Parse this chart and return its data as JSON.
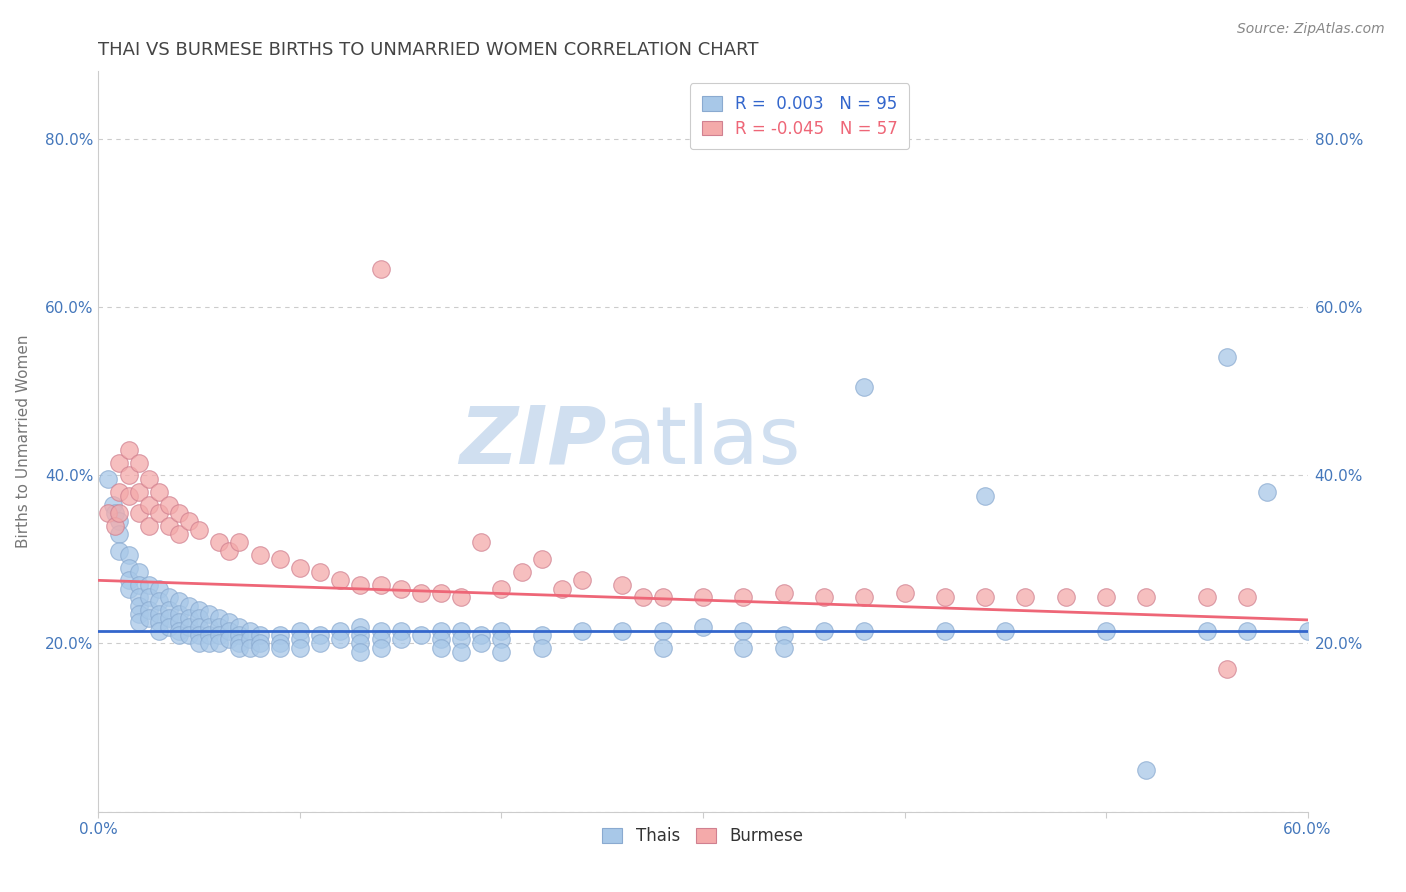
{
  "title": "THAI VS BURMESE BIRTHS TO UNMARRIED WOMEN CORRELATION CHART",
  "source_text": "Source: ZipAtlas.com",
  "ylabel": "Births to Unmarried Women",
  "xlim": [
    0.0,
    0.6
  ],
  "ylim": [
    0.0,
    0.88
  ],
  "xticks": [
    0.0,
    0.1,
    0.2,
    0.3,
    0.4,
    0.5,
    0.6
  ],
  "yticks": [
    0.0,
    0.2,
    0.4,
    0.6,
    0.8
  ],
  "xticklabels": [
    "0.0%",
    "",
    "",
    "",
    "",
    "",
    "60.0%"
  ],
  "yticklabels": [
    "",
    "20.0%",
    "40.0%",
    "60.0%",
    "80.0%"
  ],
  "right_yticklabels": [
    "20.0%",
    "40.0%",
    "60.0%",
    "80.0%"
  ],
  "thai_R": 0.003,
  "thai_N": 95,
  "burmese_R": -0.045,
  "burmese_N": 57,
  "thai_color": "#A8C8E8",
  "burmese_color": "#F4AAAA",
  "thai_line_color": "#3366CC",
  "burmese_line_color": "#EE6677",
  "watermark_color": "#D0DFF0",
  "title_color": "#444444",
  "axis_label_color": "#777777",
  "tick_color": "#4477BB",
  "grid_color": "#CCCCCC",
  "thai_line_y0": 0.215,
  "thai_line_y1": 0.215,
  "burmese_line_y0": 0.275,
  "burmese_line_y1": 0.228,
  "thai_scatter": [
    [
      0.005,
      0.395
    ],
    [
      0.007,
      0.365
    ],
    [
      0.008,
      0.355
    ],
    [
      0.01,
      0.345
    ],
    [
      0.01,
      0.33
    ],
    [
      0.01,
      0.31
    ],
    [
      0.015,
      0.305
    ],
    [
      0.015,
      0.29
    ],
    [
      0.015,
      0.275
    ],
    [
      0.015,
      0.265
    ],
    [
      0.02,
      0.285
    ],
    [
      0.02,
      0.27
    ],
    [
      0.02,
      0.255
    ],
    [
      0.02,
      0.245
    ],
    [
      0.02,
      0.235
    ],
    [
      0.02,
      0.225
    ],
    [
      0.025,
      0.27
    ],
    [
      0.025,
      0.255
    ],
    [
      0.025,
      0.24
    ],
    [
      0.025,
      0.23
    ],
    [
      0.03,
      0.265
    ],
    [
      0.03,
      0.25
    ],
    [
      0.03,
      0.235
    ],
    [
      0.03,
      0.225
    ],
    [
      0.03,
      0.215
    ],
    [
      0.035,
      0.255
    ],
    [
      0.035,
      0.24
    ],
    [
      0.035,
      0.23
    ],
    [
      0.035,
      0.22
    ],
    [
      0.04,
      0.25
    ],
    [
      0.04,
      0.235
    ],
    [
      0.04,
      0.225
    ],
    [
      0.04,
      0.215
    ],
    [
      0.04,
      0.21
    ],
    [
      0.045,
      0.245
    ],
    [
      0.045,
      0.23
    ],
    [
      0.045,
      0.22
    ],
    [
      0.045,
      0.21
    ],
    [
      0.05,
      0.24
    ],
    [
      0.05,
      0.23
    ],
    [
      0.05,
      0.22
    ],
    [
      0.05,
      0.21
    ],
    [
      0.05,
      0.2
    ],
    [
      0.055,
      0.235
    ],
    [
      0.055,
      0.22
    ],
    [
      0.055,
      0.21
    ],
    [
      0.055,
      0.2
    ],
    [
      0.06,
      0.23
    ],
    [
      0.06,
      0.22
    ],
    [
      0.06,
      0.21
    ],
    [
      0.06,
      0.2
    ],
    [
      0.065,
      0.225
    ],
    [
      0.065,
      0.215
    ],
    [
      0.065,
      0.205
    ],
    [
      0.07,
      0.22
    ],
    [
      0.07,
      0.21
    ],
    [
      0.07,
      0.2
    ],
    [
      0.07,
      0.195
    ],
    [
      0.075,
      0.215
    ],
    [
      0.075,
      0.205
    ],
    [
      0.075,
      0.195
    ],
    [
      0.08,
      0.21
    ],
    [
      0.08,
      0.2
    ],
    [
      0.08,
      0.195
    ],
    [
      0.09,
      0.21
    ],
    [
      0.09,
      0.2
    ],
    [
      0.09,
      0.195
    ],
    [
      0.1,
      0.215
    ],
    [
      0.1,
      0.205
    ],
    [
      0.1,
      0.195
    ],
    [
      0.11,
      0.21
    ],
    [
      0.11,
      0.2
    ],
    [
      0.12,
      0.215
    ],
    [
      0.12,
      0.205
    ],
    [
      0.13,
      0.22
    ],
    [
      0.13,
      0.21
    ],
    [
      0.13,
      0.2
    ],
    [
      0.13,
      0.19
    ],
    [
      0.14,
      0.215
    ],
    [
      0.14,
      0.205
    ],
    [
      0.14,
      0.195
    ],
    [
      0.15,
      0.215
    ],
    [
      0.15,
      0.205
    ],
    [
      0.16,
      0.21
    ],
    [
      0.17,
      0.215
    ],
    [
      0.17,
      0.205
    ],
    [
      0.17,
      0.195
    ],
    [
      0.18,
      0.215
    ],
    [
      0.18,
      0.205
    ],
    [
      0.18,
      0.19
    ],
    [
      0.19,
      0.21
    ],
    [
      0.19,
      0.2
    ],
    [
      0.2,
      0.215
    ],
    [
      0.2,
      0.205
    ],
    [
      0.2,
      0.19
    ],
    [
      0.22,
      0.21
    ],
    [
      0.22,
      0.195
    ],
    [
      0.24,
      0.215
    ],
    [
      0.26,
      0.215
    ],
    [
      0.28,
      0.215
    ],
    [
      0.28,
      0.195
    ],
    [
      0.3,
      0.22
    ],
    [
      0.32,
      0.215
    ],
    [
      0.32,
      0.195
    ],
    [
      0.34,
      0.21
    ],
    [
      0.34,
      0.195
    ],
    [
      0.36,
      0.215
    ],
    [
      0.38,
      0.215
    ],
    [
      0.38,
      0.505
    ],
    [
      0.42,
      0.215
    ],
    [
      0.44,
      0.375
    ],
    [
      0.45,
      0.215
    ],
    [
      0.5,
      0.215
    ],
    [
      0.52,
      0.05
    ],
    [
      0.55,
      0.215
    ],
    [
      0.56,
      0.54
    ],
    [
      0.57,
      0.215
    ],
    [
      0.58,
      0.38
    ],
    [
      0.6,
      0.215
    ]
  ],
  "burmese_scatter": [
    [
      0.005,
      0.355
    ],
    [
      0.008,
      0.34
    ],
    [
      0.01,
      0.415
    ],
    [
      0.01,
      0.38
    ],
    [
      0.01,
      0.355
    ],
    [
      0.015,
      0.43
    ],
    [
      0.015,
      0.4
    ],
    [
      0.015,
      0.375
    ],
    [
      0.02,
      0.415
    ],
    [
      0.02,
      0.38
    ],
    [
      0.02,
      0.355
    ],
    [
      0.025,
      0.395
    ],
    [
      0.025,
      0.365
    ],
    [
      0.025,
      0.34
    ],
    [
      0.03,
      0.38
    ],
    [
      0.03,
      0.355
    ],
    [
      0.035,
      0.365
    ],
    [
      0.035,
      0.34
    ],
    [
      0.04,
      0.355
    ],
    [
      0.04,
      0.33
    ],
    [
      0.045,
      0.345
    ],
    [
      0.05,
      0.335
    ],
    [
      0.06,
      0.32
    ],
    [
      0.065,
      0.31
    ],
    [
      0.07,
      0.32
    ],
    [
      0.08,
      0.305
    ],
    [
      0.09,
      0.3
    ],
    [
      0.1,
      0.29
    ],
    [
      0.11,
      0.285
    ],
    [
      0.12,
      0.275
    ],
    [
      0.13,
      0.27
    ],
    [
      0.14,
      0.27
    ],
    [
      0.14,
      0.645
    ],
    [
      0.15,
      0.265
    ],
    [
      0.16,
      0.26
    ],
    [
      0.17,
      0.26
    ],
    [
      0.18,
      0.255
    ],
    [
      0.19,
      0.32
    ],
    [
      0.2,
      0.265
    ],
    [
      0.21,
      0.285
    ],
    [
      0.22,
      0.3
    ],
    [
      0.23,
      0.265
    ],
    [
      0.24,
      0.275
    ],
    [
      0.26,
      0.27
    ],
    [
      0.27,
      0.255
    ],
    [
      0.28,
      0.255
    ],
    [
      0.3,
      0.255
    ],
    [
      0.32,
      0.255
    ],
    [
      0.34,
      0.26
    ],
    [
      0.36,
      0.255
    ],
    [
      0.38,
      0.255
    ],
    [
      0.4,
      0.26
    ],
    [
      0.42,
      0.255
    ],
    [
      0.44,
      0.255
    ],
    [
      0.46,
      0.255
    ],
    [
      0.48,
      0.255
    ],
    [
      0.5,
      0.255
    ],
    [
      0.52,
      0.255
    ],
    [
      0.55,
      0.255
    ],
    [
      0.56,
      0.17
    ],
    [
      0.57,
      0.255
    ]
  ]
}
